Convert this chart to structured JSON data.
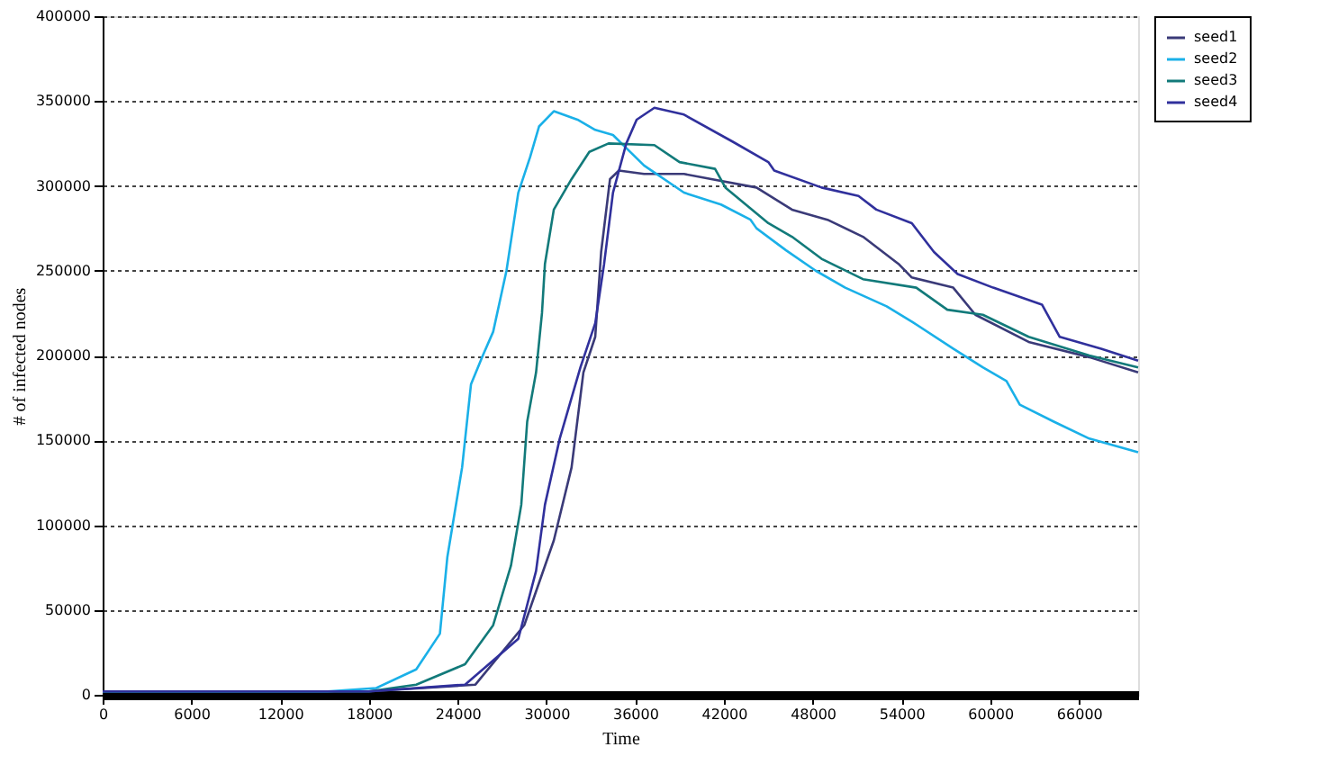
{
  "chart_data": {
    "type": "line",
    "xlabel": "Time",
    "ylabel": "# of infected nodes",
    "xlim": [
      0,
      70000
    ],
    "ylim": [
      0,
      400000
    ],
    "xticks": [
      0,
      6000,
      12000,
      18000,
      24000,
      30000,
      36000,
      42000,
      48000,
      54000,
      60000,
      66000
    ],
    "yticks": [
      0,
      50000,
      100000,
      150000,
      200000,
      250000,
      300000,
      350000,
      400000
    ],
    "grid": "y",
    "legend": "right",
    "marker": "none",
    "line_style": "solid",
    "series": [
      {
        "name": "seed1",
        "color": "#3a3a78",
        "x": [
          0,
          18000,
          25200,
          28500,
          30500,
          31700,
          32500,
          33300,
          33700,
          34300,
          34900,
          36600,
          39300,
          44200,
          46600,
          49000,
          51400,
          53800,
          54700,
          57500,
          59000,
          62600,
          66700,
          70000
        ],
        "values": [
          2000,
          2000,
          6000,
          41000,
          91000,
          134000,
          190000,
          211000,
          261000,
          304000,
          309000,
          307000,
          307000,
          299000,
          286000,
          280000,
          270000,
          254000,
          246000,
          240000,
          224000,
          208000,
          199000,
          190000
        ]
      },
      {
        "name": "seed2",
        "color": "#1ab0e8",
        "x": [
          0,
          15200,
          18500,
          21200,
          22800,
          23300,
          24300,
          24900,
          25700,
          26400,
          27300,
          28100,
          28900,
          29500,
          30500,
          32100,
          33300,
          34500,
          36600,
          39300,
          41800,
          43800,
          44200,
          46200,
          48200,
          50200,
          53000,
          54700,
          57500,
          59500,
          61100,
          62000,
          64300,
          66700,
          70000
        ],
        "values": [
          2000,
          2000,
          4000,
          15000,
          36000,
          81000,
          134000,
          183000,
          200000,
          214000,
          250000,
          296000,
          317000,
          335000,
          344000,
          339000,
          333000,
          330000,
          312000,
          296000,
          289000,
          280000,
          275000,
          262000,
          250000,
          240000,
          229000,
          220000,
          204000,
          193000,
          185000,
          171000,
          161000,
          151000,
          143000
        ]
      },
      {
        "name": "seed3",
        "color": "#127a7a",
        "x": [
          0,
          18000,
          21200,
          24500,
          26400,
          27600,
          28300,
          28700,
          29300,
          29700,
          29900,
          30500,
          31700,
          32900,
          34200,
          37300,
          39000,
          41400,
          42100,
          45000,
          46600,
          48600,
          51400,
          55000,
          57100,
          59500,
          62600,
          66700,
          70000
        ],
        "values": [
          2000,
          2000,
          6000,
          18000,
          41000,
          76000,
          112000,
          161000,
          190000,
          225000,
          254000,
          286000,
          304000,
          320000,
          325000,
          324000,
          314000,
          310000,
          299000,
          278000,
          270000,
          257000,
          245000,
          240000,
          227000,
          224000,
          211000,
          200000,
          193000
        ]
      },
      {
        "name": "seed4",
        "color": "#30309c",
        "x": [
          0,
          18000,
          24500,
          28100,
          29300,
          29900,
          30900,
          32300,
          33300,
          33900,
          34500,
          35400,
          36100,
          37300,
          39300,
          42600,
          45000,
          45400,
          48600,
          51100,
          52300,
          54700,
          56200,
          57800,
          60200,
          63500,
          64700,
          67500,
          70000
        ],
        "values": [
          2000,
          2000,
          6000,
          33000,
          73000,
          112000,
          151000,
          193000,
          219000,
          254000,
          296000,
          325000,
          339000,
          346000,
          342000,
          326000,
          314000,
          309000,
          299000,
          294000,
          286000,
          278000,
          261000,
          248000,
          240000,
          230000,
          211000,
          204000,
          197000
        ]
      }
    ]
  }
}
